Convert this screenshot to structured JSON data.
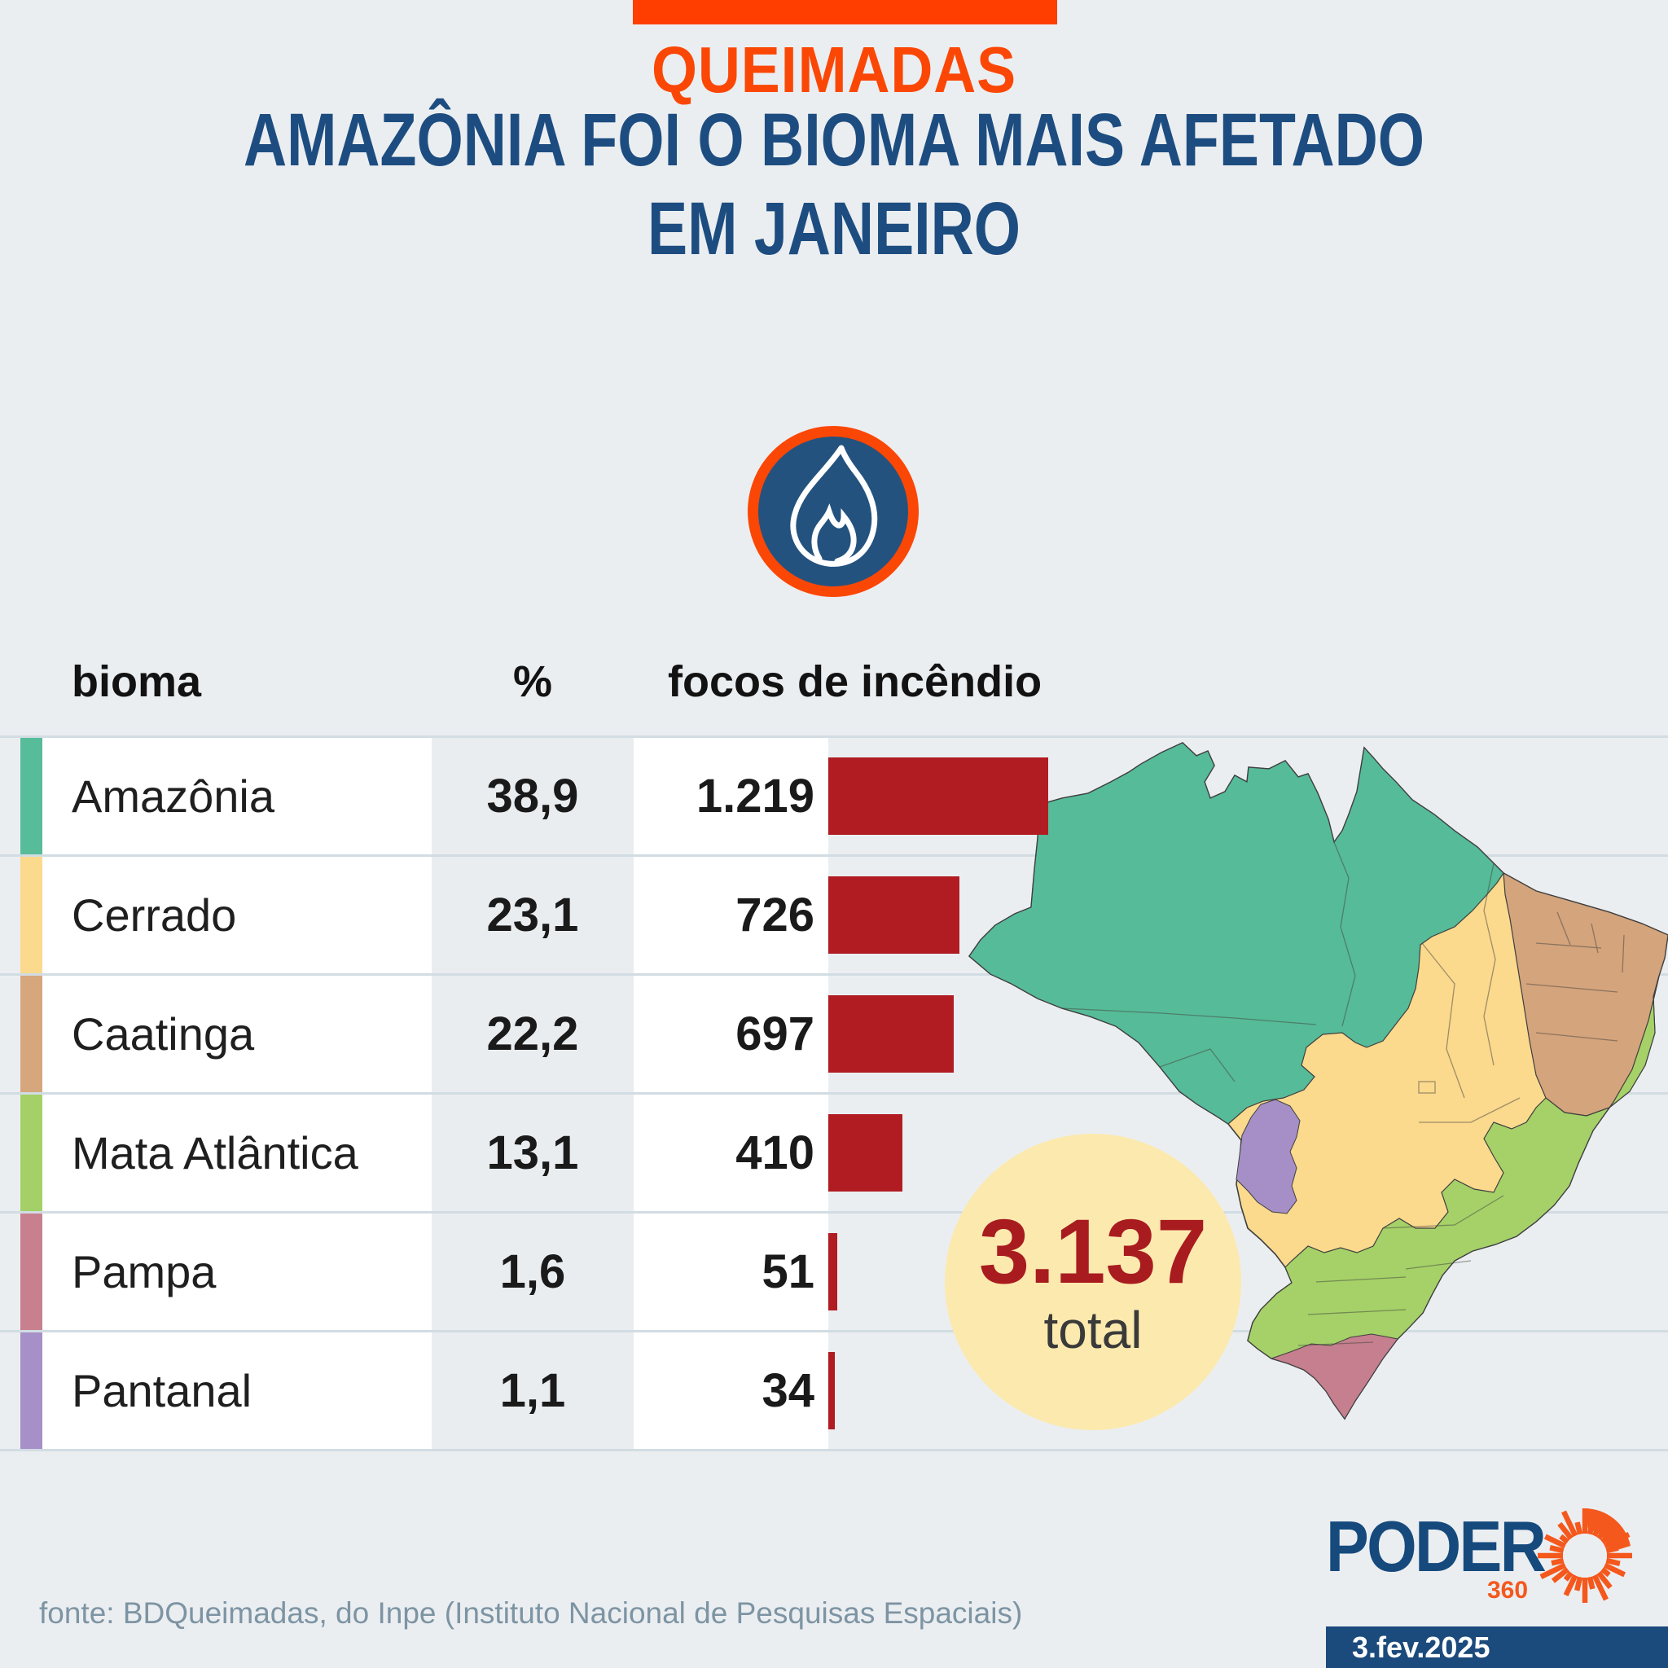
{
  "header": {
    "kicker": "QUEIMADAS",
    "title_line1": "AMAZÔNIA FOI O BIOMA MAIS AFETADO",
    "title_line2": "EM JANEIRO"
  },
  "colors": {
    "accent_orange": "#fb4705",
    "top_bar_orange": "#ff3e00",
    "title_navy": "#1d4d80",
    "bar_red": "#b01c21",
    "total_red": "#a81c20",
    "total_circle_yellow": "#fce9ae",
    "background": "#ebeef1",
    "grid_line": "#d2dce3",
    "source_gray": "#7d94a3",
    "logo_navy": "#164a7d",
    "logo_orange": "#f4581c",
    "date_box_navy": "#1b4a7c",
    "flame_circle_navy": "#24527f"
  },
  "table": {
    "columns": [
      "bioma",
      "%",
      "focos de incêndio"
    ],
    "rows": [
      {
        "name": "Amazônia",
        "percent": "38,9",
        "focos": "1.219",
        "focos_value": 1219,
        "accent": "#57bc99"
      },
      {
        "name": "Cerrado",
        "percent": "23,1",
        "focos": "726",
        "focos_value": 726,
        "accent": "#fbd98d"
      },
      {
        "name": "Caatinga",
        "percent": "22,2",
        "focos": "697",
        "focos_value": 697,
        "accent": "#d6a67d"
      },
      {
        "name": "Mata Atlântica",
        "percent": "13,1",
        "focos": "410",
        "focos_value": 410,
        "accent": "#a4d067"
      },
      {
        "name": "Pampa",
        "percent": "1,6",
        "focos": "51",
        "focos_value": 51,
        "accent": "#c8808f"
      },
      {
        "name": "Pantanal",
        "percent": "1,1",
        "focos": "34",
        "focos_value": 34,
        "accent": "#a78fc7"
      }
    ]
  },
  "total": {
    "value": "3.137",
    "label": "total"
  },
  "map": {
    "name": "brazil-biomes-map",
    "region_colors": {
      "amazonia": "#56bb98",
      "cerrado": "#fbd98d",
      "caatinga": "#d4a47c",
      "mata_atlantica": "#a5d168",
      "pampa": "#c57f8e",
      "pantanal": "#a58fc6"
    }
  },
  "footer": {
    "source": "fonte: BDQueimadas, do Inpe (Instituto Nacional de Pesquisas Espaciais)",
    "logo_text": "PODER",
    "logo_suffix": "360",
    "date": "3.fev.2025"
  },
  "chart_data": {
    "type": "bar",
    "orientation": "horizontal",
    "title": "Queimadas: Amazônia foi o bioma mais afetado em janeiro",
    "categories": [
      "Amazônia",
      "Cerrado",
      "Caatinga",
      "Mata Atlântica",
      "Pampa",
      "Pantanal"
    ],
    "series": [
      {
        "name": "%",
        "values": [
          38.9,
          23.1,
          22.2,
          13.1,
          1.6,
          1.1
        ]
      },
      {
        "name": "focos de incêndio",
        "values": [
          1219,
          726,
          697,
          410,
          51,
          34
        ]
      }
    ],
    "total": 3137,
    "bar_color": "#b01c21",
    "legend_position": "none",
    "grid": "horizontal-row-lines"
  }
}
